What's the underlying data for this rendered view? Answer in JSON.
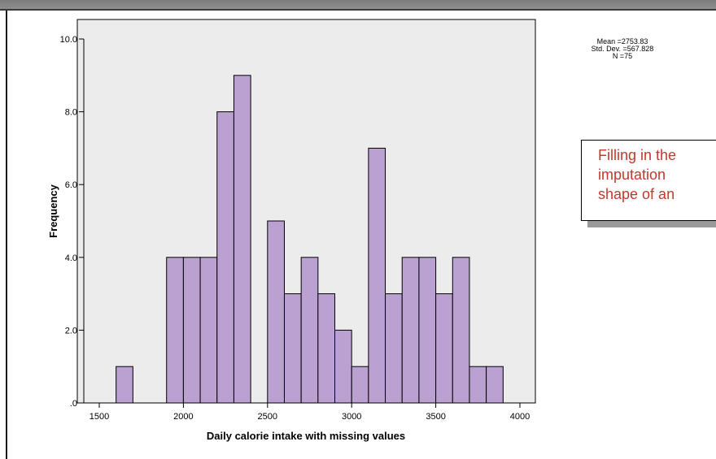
{
  "chart_data": {
    "type": "bar",
    "subtype": "histogram",
    "xlabel": "Daily calorie intake with missing values",
    "ylabel": "Frequency",
    "xlim": [
      1400,
      4100
    ],
    "ylim": [
      0,
      10
    ],
    "x_ticks": [
      1500,
      2000,
      2500,
      3000,
      3500,
      4000
    ],
    "y_ticks": [
      0,
      2,
      4,
      6,
      8,
      10
    ],
    "y_tick_labels": [
      ".0",
      "2.0",
      "4.0",
      "6.0",
      "8.0",
      "10.0"
    ],
    "bin_width": 100,
    "bins": [
      {
        "start": 1600,
        "end": 1700,
        "value": 1
      },
      {
        "start": 1900,
        "end": 2000,
        "value": 4
      },
      {
        "start": 2000,
        "end": 2100,
        "value": 4
      },
      {
        "start": 2100,
        "end": 2200,
        "value": 4
      },
      {
        "start": 2200,
        "end": 2300,
        "value": 8
      },
      {
        "start": 2300,
        "end": 2400,
        "value": 9
      },
      {
        "start": 2500,
        "end": 2600,
        "value": 5
      },
      {
        "start": 2600,
        "end": 2700,
        "value": 3
      },
      {
        "start": 2700,
        "end": 2800,
        "value": 4
      },
      {
        "start": 2800,
        "end": 2900,
        "value": 3
      },
      {
        "start": 2900,
        "end": 3000,
        "value": 2
      },
      {
        "start": 3000,
        "end": 3100,
        "value": 1
      },
      {
        "start": 3100,
        "end": 3200,
        "value": 7
      },
      {
        "start": 3200,
        "end": 3300,
        "value": 3
      },
      {
        "start": 3300,
        "end": 3400,
        "value": 4
      },
      {
        "start": 3400,
        "end": 3500,
        "value": 4
      },
      {
        "start": 3500,
        "end": 3600,
        "value": 3
      },
      {
        "start": 3600,
        "end": 3700,
        "value": 4
      },
      {
        "start": 3700,
        "end": 3800,
        "value": 1
      },
      {
        "start": 3800,
        "end": 3900,
        "value": 1
      }
    ],
    "grid": false,
    "colors": {
      "bar_fill": "#bba0d2",
      "plot_background": "#ececec",
      "bar_stroke": "#000000"
    }
  },
  "stats": {
    "mean": "Mean =2753.83",
    "std": "Std. Dev. =567.828",
    "n": "N =75"
  },
  "callout": {
    "lines": [
      "Filling in the",
      "imputation",
      "shape of an"
    ],
    "color": "#c0392b"
  }
}
